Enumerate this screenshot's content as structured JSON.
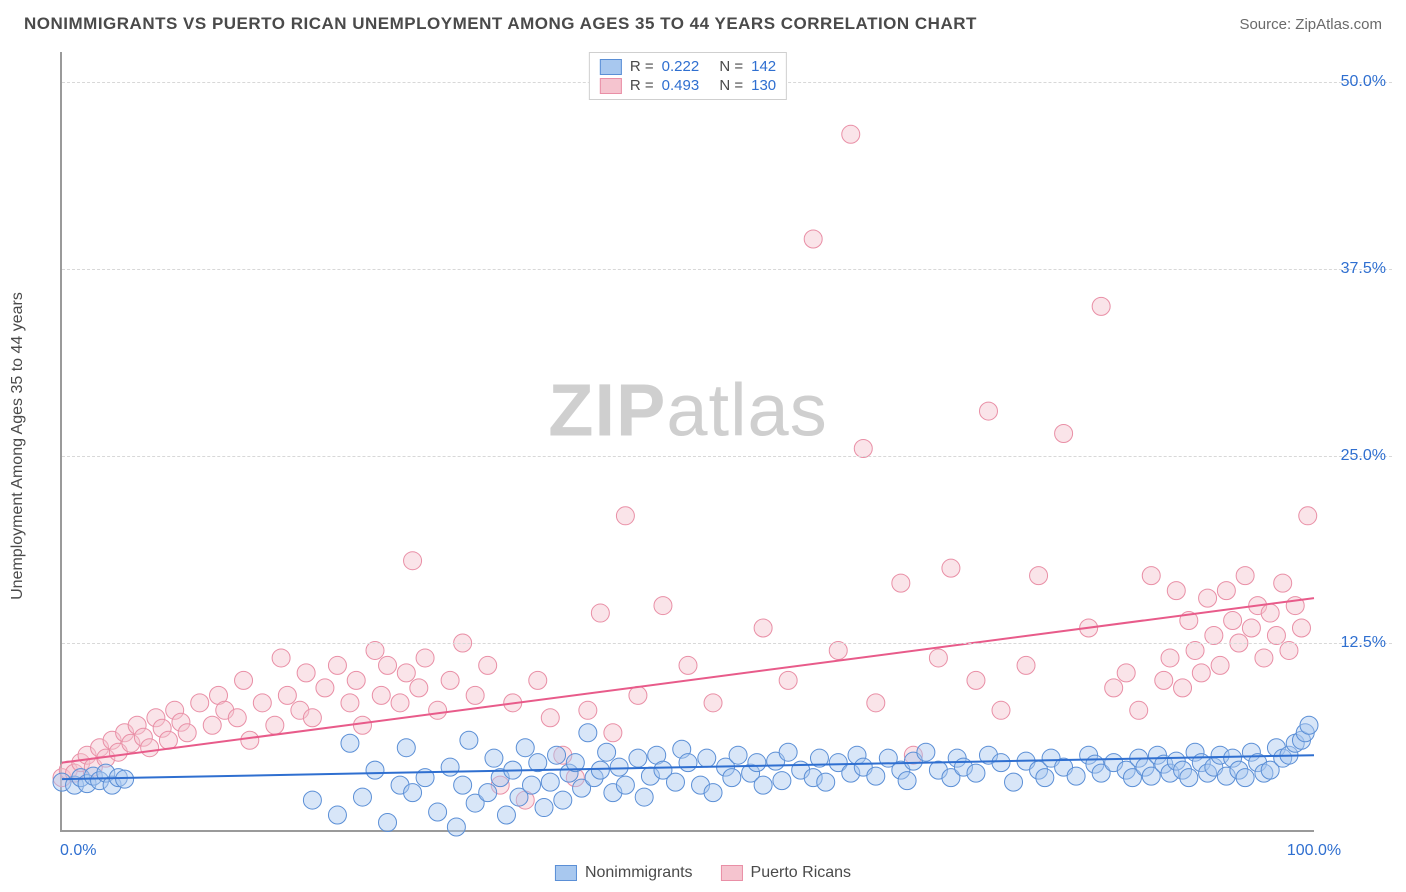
{
  "title": "NONIMMIGRANTS VS PUERTO RICAN UNEMPLOYMENT AMONG AGES 35 TO 44 YEARS CORRELATION CHART",
  "source": "Source: ZipAtlas.com",
  "watermark_a": "ZIP",
  "watermark_b": "atlas",
  "ylabel": "Unemployment Among Ages 35 to 44 years",
  "chart": {
    "type": "scatter",
    "background": "#ffffff",
    "grid_color": "#d8d8d8",
    "axis_color": "#9a9a9a",
    "xlim": [
      0,
      100
    ],
    "ylim": [
      0,
      52
    ],
    "ytick_step": 12.5,
    "yticks": [
      "12.5%",
      "25.0%",
      "37.5%",
      "50.0%"
    ],
    "ytick_vals": [
      12.5,
      25.0,
      37.5,
      50.0
    ],
    "xticks": [
      {
        "v": 0,
        "label": "0.0%"
      },
      {
        "v": 100,
        "label": "100.0%"
      }
    ],
    "tick_color": "#2f6fd0",
    "tick_fontsize": 16,
    "marker_radius": 9,
    "marker_opacity": 0.45,
    "line_width": 2,
    "series": [
      {
        "name": "Nonimmigrants",
        "color_fill": "#a8c8ef",
        "color_stroke": "#5b8fd6",
        "line_color": "#2f6fd0",
        "R_label": "R =",
        "R": "0.222",
        "N_label": "N =",
        "N": "142",
        "trend": {
          "x1": 0,
          "y1": 3.4,
          "x2": 100,
          "y2": 5.0
        },
        "points": [
          [
            0,
            3.2
          ],
          [
            1,
            3.0
          ],
          [
            1.5,
            3.5
          ],
          [
            2,
            3.1
          ],
          [
            2.5,
            3.6
          ],
          [
            3,
            3.3
          ],
          [
            3.5,
            3.8
          ],
          [
            4,
            3.0
          ],
          [
            4.5,
            3.5
          ],
          [
            5,
            3.4
          ],
          [
            20,
            2.0
          ],
          [
            22,
            1.0
          ],
          [
            23,
            5.8
          ],
          [
            24,
            2.2
          ],
          [
            25,
            4.0
          ],
          [
            26,
            0.5
          ],
          [
            27,
            3.0
          ],
          [
            27.5,
            5.5
          ],
          [
            28,
            2.5
          ],
          [
            29,
            3.5
          ],
          [
            30,
            1.2
          ],
          [
            31,
            4.2
          ],
          [
            31.5,
            0.2
          ],
          [
            32,
            3.0
          ],
          [
            32.5,
            6.0
          ],
          [
            33,
            1.8
          ],
          [
            34,
            2.5
          ],
          [
            34.5,
            4.8
          ],
          [
            35,
            3.5
          ],
          [
            35.5,
            1.0
          ],
          [
            36,
            4.0
          ],
          [
            36.5,
            2.2
          ],
          [
            37,
            5.5
          ],
          [
            37.5,
            3.0
          ],
          [
            38,
            4.5
          ],
          [
            38.5,
            1.5
          ],
          [
            39,
            3.2
          ],
          [
            39.5,
            5.0
          ],
          [
            40,
            2.0
          ],
          [
            40.5,
            3.8
          ],
          [
            41,
            4.5
          ],
          [
            41.5,
            2.8
          ],
          [
            42,
            6.5
          ],
          [
            42.5,
            3.5
          ],
          [
            43,
            4.0
          ],
          [
            43.5,
            5.2
          ],
          [
            44,
            2.5
          ],
          [
            44.5,
            4.2
          ],
          [
            45,
            3.0
          ],
          [
            46,
            4.8
          ],
          [
            46.5,
            2.2
          ],
          [
            47,
            3.6
          ],
          [
            47.5,
            5.0
          ],
          [
            48,
            4.0
          ],
          [
            49,
            3.2
          ],
          [
            49.5,
            5.4
          ],
          [
            50,
            4.5
          ],
          [
            51,
            3.0
          ],
          [
            51.5,
            4.8
          ],
          [
            52,
            2.5
          ],
          [
            53,
            4.2
          ],
          [
            53.5,
            3.5
          ],
          [
            54,
            5.0
          ],
          [
            55,
            3.8
          ],
          [
            55.5,
            4.5
          ],
          [
            56,
            3.0
          ],
          [
            57,
            4.6
          ],
          [
            57.5,
            3.3
          ],
          [
            58,
            5.2
          ],
          [
            59,
            4.0
          ],
          [
            60,
            3.5
          ],
          [
            60.5,
            4.8
          ],
          [
            61,
            3.2
          ],
          [
            62,
            4.5
          ],
          [
            63,
            3.8
          ],
          [
            63.5,
            5.0
          ],
          [
            64,
            4.2
          ],
          [
            65,
            3.6
          ],
          [
            66,
            4.8
          ],
          [
            67,
            4.0
          ],
          [
            67.5,
            3.3
          ],
          [
            68,
            4.6
          ],
          [
            69,
            5.2
          ],
          [
            70,
            4.0
          ],
          [
            71,
            3.5
          ],
          [
            71.5,
            4.8
          ],
          [
            72,
            4.2
          ],
          [
            73,
            3.8
          ],
          [
            74,
            5.0
          ],
          [
            75,
            4.5
          ],
          [
            76,
            3.2
          ],
          [
            77,
            4.6
          ],
          [
            78,
            4.0
          ],
          [
            78.5,
            3.5
          ],
          [
            79,
            4.8
          ],
          [
            80,
            4.2
          ],
          [
            81,
            3.6
          ],
          [
            82,
            5.0
          ],
          [
            82.5,
            4.4
          ],
          [
            83,
            3.8
          ],
          [
            84,
            4.5
          ],
          [
            85,
            4.0
          ],
          [
            85.5,
            3.5
          ],
          [
            86,
            4.8
          ],
          [
            86.5,
            4.2
          ],
          [
            87,
            3.6
          ],
          [
            87.5,
            5.0
          ],
          [
            88,
            4.4
          ],
          [
            88.5,
            3.8
          ],
          [
            89,
            4.6
          ],
          [
            89.5,
            4.0
          ],
          [
            90,
            3.5
          ],
          [
            90.5,
            5.2
          ],
          [
            91,
            4.5
          ],
          [
            91.5,
            3.8
          ],
          [
            92,
            4.2
          ],
          [
            92.5,
            5.0
          ],
          [
            93,
            3.6
          ],
          [
            93.5,
            4.8
          ],
          [
            94,
            4.0
          ],
          [
            94.5,
            3.5
          ],
          [
            95,
            5.2
          ],
          [
            95.5,
            4.5
          ],
          [
            96,
            3.8
          ],
          [
            96.5,
            4.0
          ],
          [
            97,
            5.5
          ],
          [
            97.5,
            4.8
          ],
          [
            98,
            5.0
          ],
          [
            98.5,
            5.8
          ],
          [
            99,
            6.0
          ],
          [
            99.3,
            6.5
          ],
          [
            99.6,
            7.0
          ]
        ]
      },
      {
        "name": "Puerto Ricans",
        "color_fill": "#f5c4cf",
        "color_stroke": "#e98fa6",
        "line_color": "#e85b8a",
        "R_label": "R =",
        "R": "0.493",
        "N_label": "N =",
        "N": "130",
        "trend": {
          "x1": 0,
          "y1": 4.5,
          "x2": 100,
          "y2": 15.5
        },
        "points": [
          [
            0,
            3.5
          ],
          [
            0.5,
            4.0
          ],
          [
            1,
            3.8
          ],
          [
            1.5,
            4.5
          ],
          [
            2,
            5.0
          ],
          [
            2.5,
            4.2
          ],
          [
            3,
            5.5
          ],
          [
            3.5,
            4.8
          ],
          [
            4,
            6.0
          ],
          [
            4.5,
            5.2
          ],
          [
            5,
            6.5
          ],
          [
            5.5,
            5.8
          ],
          [
            6,
            7.0
          ],
          [
            6.5,
            6.2
          ],
          [
            7,
            5.5
          ],
          [
            7.5,
            7.5
          ],
          [
            8,
            6.8
          ],
          [
            8.5,
            6.0
          ],
          [
            9,
            8.0
          ],
          [
            9.5,
            7.2
          ],
          [
            10,
            6.5
          ],
          [
            11,
            8.5
          ],
          [
            12,
            7.0
          ],
          [
            12.5,
            9.0
          ],
          [
            13,
            8.0
          ],
          [
            14,
            7.5
          ],
          [
            14.5,
            10.0
          ],
          [
            15,
            6.0
          ],
          [
            16,
            8.5
          ],
          [
            17,
            7.0
          ],
          [
            17.5,
            11.5
          ],
          [
            18,
            9.0
          ],
          [
            19,
            8.0
          ],
          [
            19.5,
            10.5
          ],
          [
            20,
            7.5
          ],
          [
            21,
            9.5
          ],
          [
            22,
            11.0
          ],
          [
            23,
            8.5
          ],
          [
            23.5,
            10.0
          ],
          [
            24,
            7.0
          ],
          [
            25,
            12.0
          ],
          [
            25.5,
            9.0
          ],
          [
            26,
            11.0
          ],
          [
            27,
            8.5
          ],
          [
            27.5,
            10.5
          ],
          [
            28,
            18.0
          ],
          [
            28.5,
            9.5
          ],
          [
            29,
            11.5
          ],
          [
            30,
            8.0
          ],
          [
            31,
            10.0
          ],
          [
            32,
            12.5
          ],
          [
            33,
            9.0
          ],
          [
            34,
            11.0
          ],
          [
            35,
            3.0
          ],
          [
            36,
            8.5
          ],
          [
            37,
            2.0
          ],
          [
            38,
            10.0
          ],
          [
            39,
            7.5
          ],
          [
            40,
            5.0
          ],
          [
            41,
            3.5
          ],
          [
            42,
            8.0
          ],
          [
            43,
            14.5
          ],
          [
            44,
            6.5
          ],
          [
            45,
            21.0
          ],
          [
            46,
            9.0
          ],
          [
            48,
            15.0
          ],
          [
            50,
            11.0
          ],
          [
            52,
            8.5
          ],
          [
            56,
            13.5
          ],
          [
            58,
            10.0
          ],
          [
            60,
            39.5
          ],
          [
            62,
            12.0
          ],
          [
            63,
            46.5
          ],
          [
            64,
            25.5
          ],
          [
            65,
            8.5
          ],
          [
            67,
            16.5
          ],
          [
            68,
            5.0
          ],
          [
            70,
            11.5
          ],
          [
            71,
            17.5
          ],
          [
            73,
            10.0
          ],
          [
            74,
            28.0
          ],
          [
            75,
            8.0
          ],
          [
            77,
            11.0
          ],
          [
            78,
            17.0
          ],
          [
            80,
            26.5
          ],
          [
            82,
            13.5
          ],
          [
            83,
            35.0
          ],
          [
            84,
            9.5
          ],
          [
            85,
            10.5
          ],
          [
            86,
            8.0
          ],
          [
            87,
            17.0
          ],
          [
            88,
            10.0
          ],
          [
            88.5,
            11.5
          ],
          [
            89,
            16.0
          ],
          [
            89.5,
            9.5
          ],
          [
            90,
            14.0
          ],
          [
            90.5,
            12.0
          ],
          [
            91,
            10.5
          ],
          [
            91.5,
            15.5
          ],
          [
            92,
            13.0
          ],
          [
            92.5,
            11.0
          ],
          [
            93,
            16.0
          ],
          [
            93.5,
            14.0
          ],
          [
            94,
            12.5
          ],
          [
            94.5,
            17.0
          ],
          [
            95,
            13.5
          ],
          [
            95.5,
            15.0
          ],
          [
            96,
            11.5
          ],
          [
            96.5,
            14.5
          ],
          [
            97,
            13.0
          ],
          [
            97.5,
            16.5
          ],
          [
            98,
            12.0
          ],
          [
            98.5,
            15.0
          ],
          [
            99,
            13.5
          ],
          [
            99.5,
            21.0
          ]
        ]
      }
    ]
  },
  "legend_bottom": [
    "Nonimmigrants",
    "Puerto Ricans"
  ]
}
